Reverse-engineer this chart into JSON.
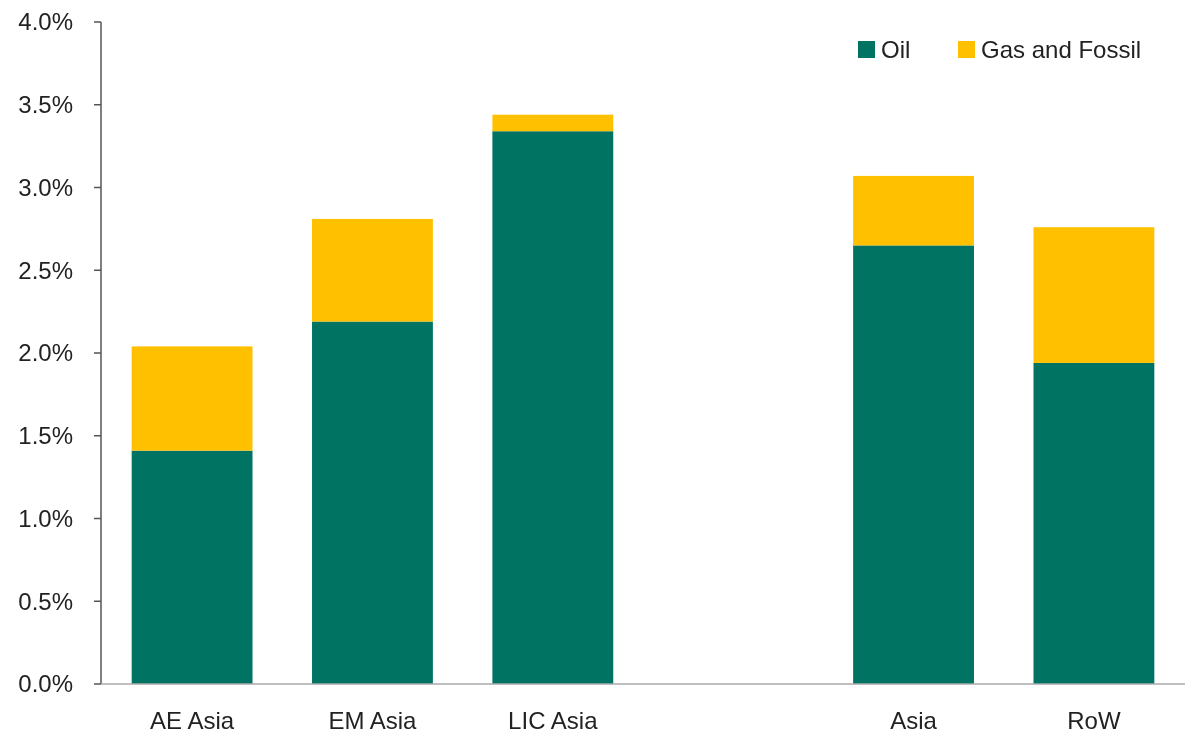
{
  "chart_data": {
    "type": "bar",
    "stacked": true,
    "categories": [
      "AE Asia",
      "EM Asia",
      "LIC Asia",
      null,
      "Asia",
      "RoW"
    ],
    "series": [
      {
        "name": "Oil",
        "color": "#007363",
        "values": [
          1.41,
          2.19,
          3.34,
          null,
          2.65,
          1.94
        ]
      },
      {
        "name": "Gas and Fossil",
        "color": "#ffc000",
        "values": [
          0.63,
          0.62,
          0.1,
          null,
          0.42,
          0.82
        ]
      }
    ],
    "ylim": [
      0,
      4
    ],
    "yticks": [
      {
        "value": 0,
        "label": "0.0%"
      },
      {
        "value": 0.5,
        "label": "0.5%"
      },
      {
        "value": 1,
        "label": "1.0%"
      },
      {
        "value": 1.5,
        "label": "1.5%"
      },
      {
        "value": 2,
        "label": "2.0%"
      },
      {
        "value": 2.5,
        "label": "2.5%"
      },
      {
        "value": 3,
        "label": "3.0%"
      },
      {
        "value": 3.5,
        "label": "3.5%"
      },
      {
        "value": 4,
        "label": "4.0%"
      }
    ],
    "grid": false,
    "legend": "top right"
  }
}
